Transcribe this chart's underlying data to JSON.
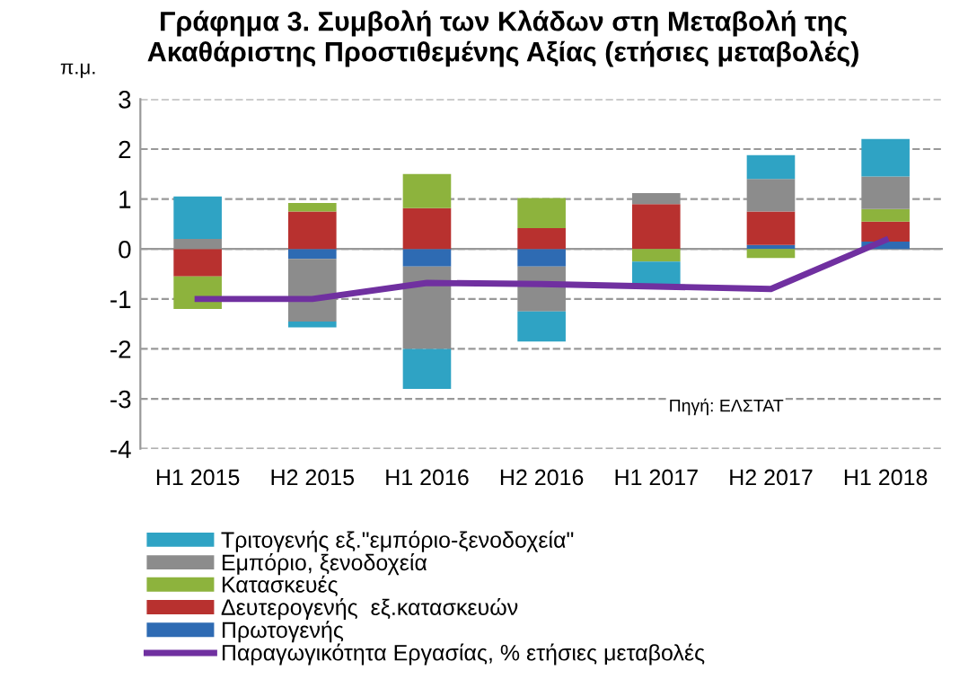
{
  "chart_data": {
    "type": "bar",
    "stacked": true,
    "title": "Γράφημα 3. Συμβολή των Κλάδων στη Μεταβολή της\nΑκαθάριστης Προστιθεμένης Αξίας (ετήσιες μεταβολές)",
    "ylabel": "π.μ.",
    "categories": [
      "H1 2015",
      "H2 2015",
      "H1 2016",
      "H2 2016",
      "H1 2017",
      "H2 2017",
      "H1 2018"
    ],
    "series": [
      {
        "name": "Πρωτογενής",
        "color": "#2e6bb3",
        "values": [
          0,
          -0.2,
          -0.35,
          -0.35,
          0,
          0.08,
          0.15
        ]
      },
      {
        "name": "Δευτερογενής  εξ.κατασκευών",
        "color": "#b8312f",
        "values": [
          -0.55,
          0.75,
          0.82,
          0.42,
          0.9,
          0.67,
          0.4
        ]
      },
      {
        "name": "Κατασκευές",
        "color": "#8db33d",
        "values": [
          -0.65,
          0.17,
          0.68,
          0.6,
          -0.25,
          -0.18,
          0.25
        ]
      },
      {
        "name": "Εμπόριο, ξενοδοχεία",
        "color": "#8c8c8c",
        "values": [
          0.2,
          -1.25,
          -1.65,
          -0.9,
          0.22,
          0.65,
          0.65
        ]
      },
      {
        "name": "Τριτογενής εξ.\"εμπόριο-ξενοδοχεία\"",
        "color": "#2fa3c4",
        "values": [
          0.85,
          -0.12,
          -0.8,
          -0.6,
          -0.5,
          0.48,
          0.75
        ]
      },
      {
        "name": "Παραγωγικότητα Εργασίας, % ετήσιες μεταβολές",
        "type": "line",
        "color": "#7030a0",
        "values": [
          -1.0,
          -1.0,
          -0.68,
          -0.7,
          -0.75,
          -0.8,
          0.18
        ]
      }
    ],
    "ylim": [
      -4,
      3
    ],
    "yticks": [
      -4,
      -3,
      -2,
      -1,
      0,
      1,
      2,
      3
    ],
    "grid": "y",
    "legend": "bottom",
    "marker": "none",
    "line_style": "solid",
    "annotations": [
      "Πηγή: ΕΛΣΤΑΤ"
    ]
  }
}
